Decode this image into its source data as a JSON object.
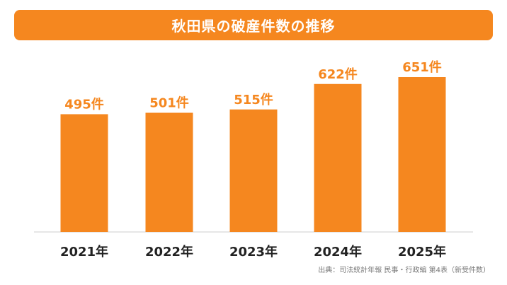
{
  "title": "秋田県の破産件数の推移",
  "source": "出典：司法統計年報 民事・行政編 第4表（新受件数）",
  "colors": {
    "bar": "#f5871f",
    "title_bg": "#f5871f",
    "value_label": "#f5871f",
    "category_label": "#222222",
    "axis": "#cccccc"
  },
  "chart_data": {
    "type": "bar",
    "title": "秋田県の破産件数の推移",
    "categories": [
      "2021年",
      "2022年",
      "2023年",
      "2024年",
      "2025年"
    ],
    "values": [
      495,
      501,
      515,
      622,
      651
    ],
    "value_labels": [
      "495件",
      "501件",
      "515件",
      "622件",
      "651件"
    ],
    "ylim": [
      0,
      700
    ],
    "grid": false,
    "legend": "none"
  }
}
